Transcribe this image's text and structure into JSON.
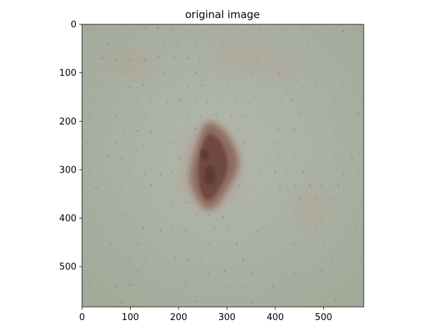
{
  "figure": {
    "title": "original image"
  },
  "image_axes": {
    "x_ticks": [
      {
        "value": 0,
        "label": "0"
      },
      {
        "value": 100,
        "label": "100"
      },
      {
        "value": 200,
        "label": "200"
      },
      {
        "value": 300,
        "label": "300"
      },
      {
        "value": 400,
        "label": "400"
      },
      {
        "value": 500,
        "label": "500"
      }
    ],
    "y_ticks": [
      {
        "value": 0,
        "label": "0"
      },
      {
        "value": 100,
        "label": "100"
      },
      {
        "value": 200,
        "label": "200"
      },
      {
        "value": 300,
        "label": "300"
      },
      {
        "value": 400,
        "label": "400"
      },
      {
        "value": 500,
        "label": "500"
      }
    ],
    "xlim": [
      0,
      583
    ],
    "ylim": [
      583,
      0
    ]
  },
  "image": {
    "subject": "skin lesion close-up",
    "colors": {
      "skin_base": "#a3aa9a",
      "skin_light": "#b2b7ab",
      "redness": "#b89a94",
      "lesion_outer": "#8e6a5e",
      "lesion_inner": "#6f4a3f",
      "lesion_dark": "#5a3a32",
      "pores": "#8f8f82"
    }
  }
}
